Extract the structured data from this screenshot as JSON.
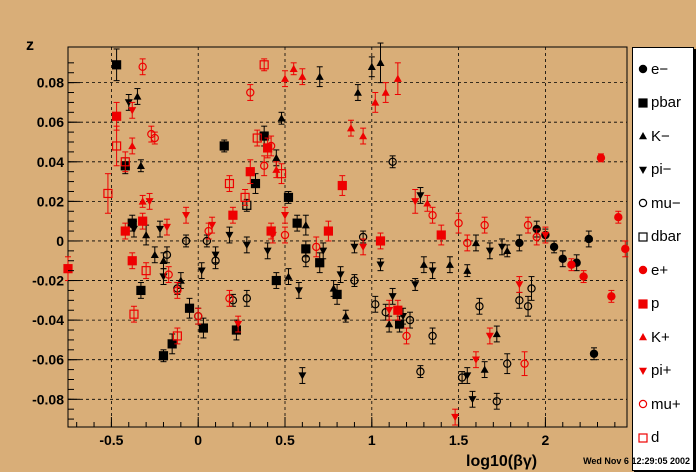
{
  "chart_data": {
    "type": "scatter",
    "xlabel": "log10(βγ)",
    "ylabel": "z",
    "xlim": [
      -0.75,
      2.47
    ],
    "ylim": [
      -0.094,
      0.098
    ],
    "xticks": [
      -0.5,
      0,
      0.5,
      1,
      1.5,
      2
    ],
    "yticks": [
      -0.08,
      -0.06,
      -0.04,
      -0.02,
      0,
      0.02,
      0.04,
      0.06,
      0.08
    ],
    "grid": true,
    "legend": "right",
    "series": [
      {
        "name": "e−",
        "marker": "filled-circle",
        "color": "#000000",
        "points": [
          [
            1.85,
            -0.001,
            0.004
          ],
          [
            1.95,
            0.006,
            0.004
          ],
          [
            2.0,
            0.003,
            0.003
          ],
          [
            2.05,
            -0.003,
            0.003
          ],
          [
            2.1,
            -0.009,
            0.004
          ],
          [
            2.18,
            -0.011,
            0.004
          ],
          [
            2.25,
            0.001,
            0.004
          ],
          [
            2.28,
            -0.057,
            0.003
          ]
        ]
      },
      {
        "name": "pbar",
        "marker": "filled-square",
        "color": "#000000",
        "points": [
          [
            -0.47,
            0.089,
            0.008
          ],
          [
            -0.42,
            0.038,
            0.004
          ],
          [
            -0.38,
            0.009,
            0.004
          ],
          [
            -0.33,
            -0.025,
            0.004
          ],
          [
            -0.2,
            -0.058,
            0.003
          ],
          [
            -0.15,
            -0.052,
            0.005
          ],
          [
            -0.05,
            -0.034,
            0.005
          ],
          [
            0.03,
            -0.044,
            0.005
          ],
          [
            0.15,
            0.048,
            0.003
          ],
          [
            0.22,
            -0.045,
            0.005
          ],
          [
            0.33,
            0.029,
            0.005
          ],
          [
            0.38,
            0.053,
            0.005
          ],
          [
            0.45,
            -0.02,
            0.004
          ],
          [
            0.52,
            0.022,
            0.003
          ],
          [
            0.57,
            0.009,
            0.004
          ],
          [
            0.62,
            -0.004,
            0.004
          ],
          [
            0.7,
            -0.011,
            0.005
          ],
          [
            0.8,
            -0.027,
            0.005
          ],
          [
            1.16,
            -0.042,
            0.004
          ]
        ]
      },
      {
        "name": "K−",
        "marker": "filled-triangle",
        "color": "#000000",
        "points": [
          [
            -0.35,
            0.073,
            0.004
          ],
          [
            -0.33,
            0.038,
            0.003
          ],
          [
            -0.3,
            0.003,
            0.005
          ],
          [
            -0.25,
            -0.007,
            0.004
          ],
          [
            -0.2,
            -0.01,
            0.004
          ],
          [
            -0.1,
            -0.02,
            0.004
          ],
          [
            0.45,
            0.042,
            0.004
          ],
          [
            0.48,
            0.062,
            0.003
          ],
          [
            0.52,
            -0.018,
            0.004
          ],
          [
            0.62,
            0.008,
            0.005
          ],
          [
            0.7,
            0.083,
            0.005
          ],
          [
            0.78,
            -0.024,
            0.004
          ],
          [
            0.85,
            -0.038,
            0.003
          ],
          [
            0.92,
            0.075,
            0.004
          ],
          [
            1.0,
            0.088,
            0.005
          ],
          [
            1.05,
            0.09,
            0.01
          ],
          [
            1.1,
            -0.042,
            0.004
          ],
          [
            1.3,
            -0.012,
            0.004
          ],
          [
            1.45,
            -0.012,
            0.004
          ],
          [
            1.55,
            -0.015,
            0.003
          ],
          [
            1.6,
            -0.001,
            0.004
          ],
          [
            1.65,
            -0.065,
            0.004
          ],
          [
            1.72,
            -0.047,
            0.004
          ],
          [
            1.78,
            -0.005,
            0.003
          ]
        ]
      },
      {
        "name": "pi−",
        "marker": "filled-triangle-down",
        "color": "#000000",
        "points": [
          [
            -0.4,
            0.07,
            0.004
          ],
          [
            -0.37,
            0.006,
            0.004
          ],
          [
            -0.22,
            0.006,
            0.004
          ],
          [
            -0.2,
            -0.018,
            0.004
          ],
          [
            0.02,
            -0.015,
            0.004
          ],
          [
            0.1,
            -0.007,
            0.004
          ],
          [
            0.18,
            0.003,
            0.004
          ],
          [
            0.28,
            -0.002,
            0.004
          ],
          [
            0.4,
            -0.005,
            0.004
          ],
          [
            0.58,
            -0.025,
            0.004
          ],
          [
            0.6,
            -0.068,
            0.004
          ],
          [
            0.72,
            -0.005,
            0.004
          ],
          [
            0.82,
            -0.017,
            0.004
          ],
          [
            0.9,
            -0.003,
            0.003
          ],
          [
            1.05,
            -0.012,
            0.003
          ],
          [
            1.12,
            -0.028,
            0.004
          ],
          [
            1.18,
            -0.038,
            0.004
          ],
          [
            1.25,
            -0.022,
            0.003
          ],
          [
            1.28,
            0.023,
            0.004
          ],
          [
            1.35,
            -0.015,
            0.004
          ],
          [
            1.55,
            -0.068,
            0.004
          ],
          [
            1.58,
            -0.08,
            0.004
          ],
          [
            1.68,
            -0.005,
            0.004
          ],
          [
            1.75,
            -0.003,
            0.004
          ]
        ]
      },
      {
        "name": "mu−",
        "marker": "open-circle",
        "color": "#000000",
        "points": [
          [
            -0.18,
            -0.007,
            0.004
          ],
          [
            -0.12,
            -0.024,
            0.003
          ],
          [
            -0.07,
            0.0,
            0.003
          ],
          [
            0.0,
            -0.038,
            0.004
          ],
          [
            0.05,
            0.0,
            0.003
          ],
          [
            0.1,
            -0.01,
            0.004
          ],
          [
            0.2,
            -0.03,
            0.003
          ],
          [
            0.28,
            -0.029,
            0.004
          ],
          [
            0.62,
            -0.009,
            0.004
          ],
          [
            0.9,
            -0.02,
            0.003
          ],
          [
            0.95,
            0.002,
            0.003
          ],
          [
            1.02,
            -0.032,
            0.004
          ],
          [
            1.08,
            -0.036,
            0.004
          ],
          [
            1.12,
            0.04,
            0.003
          ],
          [
            1.22,
            -0.04,
            0.004
          ],
          [
            1.28,
            -0.066,
            0.003
          ],
          [
            1.35,
            -0.048,
            0.004
          ],
          [
            1.52,
            -0.069,
            0.003
          ],
          [
            1.62,
            -0.033,
            0.004
          ],
          [
            1.72,
            -0.081,
            0.004
          ],
          [
            1.78,
            -0.062,
            0.005
          ],
          [
            1.85,
            -0.03,
            0.004
          ],
          [
            1.9,
            -0.033,
            0.005
          ],
          [
            1.92,
            -0.024,
            0.006
          ]
        ]
      },
      {
        "name": "dbar",
        "marker": "open-square",
        "color": "#000000",
        "points": [
          [
            0.28,
            0.018,
            0.003
          ]
        ]
      },
      {
        "name": "e+",
        "marker": "filled-circle",
        "color": "#ee0000",
        "points": [
          [
            2.15,
            -0.012,
            0.003
          ],
          [
            2.22,
            -0.018,
            0.003
          ],
          [
            2.32,
            0.042,
            0.002
          ],
          [
            2.38,
            -0.028,
            0.003
          ],
          [
            2.42,
            0.012,
            0.003
          ],
          [
            2.46,
            -0.004,
            0.004
          ]
        ]
      },
      {
        "name": "p",
        "marker": "filled-square",
        "color": "#ee0000",
        "points": [
          [
            -0.75,
            -0.014,
            0.006
          ],
          [
            -0.47,
            0.063,
            0.007
          ],
          [
            -0.42,
            0.005,
            0.004
          ],
          [
            -0.38,
            -0.01,
            0.004
          ],
          [
            -0.32,
            0.01,
            0.004
          ],
          [
            0.2,
            0.013,
            0.004
          ],
          [
            0.3,
            0.035,
            0.006
          ],
          [
            0.4,
            0.047,
            0.005
          ],
          [
            0.42,
            0.005,
            0.004
          ],
          [
            0.75,
            0.005,
            0.005
          ],
          [
            0.83,
            0.028,
            0.005
          ],
          [
            1.05,
            0.0,
            0.004
          ],
          [
            1.15,
            -0.035,
            0.005
          ],
          [
            1.4,
            0.003,
            0.005
          ]
        ]
      },
      {
        "name": "K+",
        "marker": "filled-triangle",
        "color": "#ee0000",
        "points": [
          [
            -0.38,
            0.048,
            0.004
          ],
          [
            -0.32,
            0.02,
            0.003
          ],
          [
            0.45,
            0.036,
            0.004
          ],
          [
            0.5,
            0.082,
            0.004
          ],
          [
            0.55,
            0.087,
            0.003
          ],
          [
            0.6,
            0.083,
            0.004
          ],
          [
            0.88,
            0.057,
            0.004
          ],
          [
            0.95,
            0.053,
            0.004
          ],
          [
            1.02,
            0.07,
            0.005
          ],
          [
            1.08,
            0.075,
            0.005
          ],
          [
            1.15,
            0.082,
            0.008
          ],
          [
            1.32,
            0.019,
            0.004
          ]
        ]
      },
      {
        "name": "pi+",
        "marker": "filled-triangle-down",
        "color": "#ee0000",
        "points": [
          [
            -0.38,
            0.066,
            0.004
          ],
          [
            -0.28,
            0.02,
            0.004
          ],
          [
            -0.18,
            0.007,
            0.004
          ],
          [
            -0.07,
            0.013,
            0.004
          ],
          [
            0.08,
            0.008,
            0.004
          ],
          [
            0.23,
            -0.042,
            0.004
          ],
          [
            0.43,
            0.003,
            0.004
          ],
          [
            0.5,
            0.013,
            0.004
          ],
          [
            0.95,
            -0.003,
            0.004
          ],
          [
            1.1,
            -0.035,
            0.005
          ],
          [
            1.25,
            0.02,
            0.006
          ],
          [
            1.48,
            -0.089,
            0.004
          ],
          [
            1.6,
            -0.06,
            0.004
          ],
          [
            1.68,
            -0.048,
            0.004
          ],
          [
            1.85,
            -0.022,
            0.004
          ],
          [
            2.0,
            0.003,
            0.004
          ]
        ]
      },
      {
        "name": "mu+",
        "marker": "open-circle",
        "color": "#ee0000",
        "points": [
          [
            -0.32,
            0.088,
            0.004
          ],
          [
            -0.27,
            0.054,
            0.004
          ],
          [
            -0.25,
            0.052,
            0.003
          ],
          [
            -0.17,
            -0.017,
            0.004
          ],
          [
            -0.12,
            -0.025,
            0.004
          ],
          [
            0.0,
            -0.038,
            0.004
          ],
          [
            0.06,
            0.005,
            0.004
          ],
          [
            0.18,
            -0.029,
            0.004
          ],
          [
            0.3,
            0.075,
            0.004
          ],
          [
            0.38,
            0.038,
            0.005
          ],
          [
            0.42,
            0.048,
            0.005
          ],
          [
            0.5,
            0.003,
            0.004
          ],
          [
            0.68,
            -0.003,
            0.005
          ],
          [
            1.2,
            -0.048,
            0.004
          ],
          [
            1.35,
            0.013,
            0.004
          ],
          [
            1.5,
            0.009,
            0.005
          ],
          [
            1.55,
            -0.001,
            0.004
          ],
          [
            1.65,
            0.008,
            0.004
          ],
          [
            1.88,
            -0.062,
            0.006
          ],
          [
            1.9,
            0.008,
            0.004
          ],
          [
            1.95,
            0.002,
            0.004
          ]
        ]
      },
      {
        "name": "d",
        "marker": "open-square",
        "color": "#ee0000",
        "points": [
          [
            -0.52,
            0.024,
            0.01
          ],
          [
            -0.47,
            0.048,
            0.01
          ],
          [
            -0.42,
            0.04,
            0.005
          ],
          [
            -0.37,
            -0.037,
            0.004
          ],
          [
            -0.3,
            -0.015,
            0.004
          ],
          [
            -0.12,
            -0.048,
            0.004
          ],
          [
            0.18,
            0.029,
            0.004
          ],
          [
            0.27,
            0.022,
            0.004
          ],
          [
            0.34,
            0.052,
            0.004
          ],
          [
            0.38,
            0.089,
            0.003
          ],
          [
            0.48,
            0.034,
            0.005
          ]
        ]
      }
    ]
  },
  "stamp": "Wed Nov  6 12:29:05 2002"
}
